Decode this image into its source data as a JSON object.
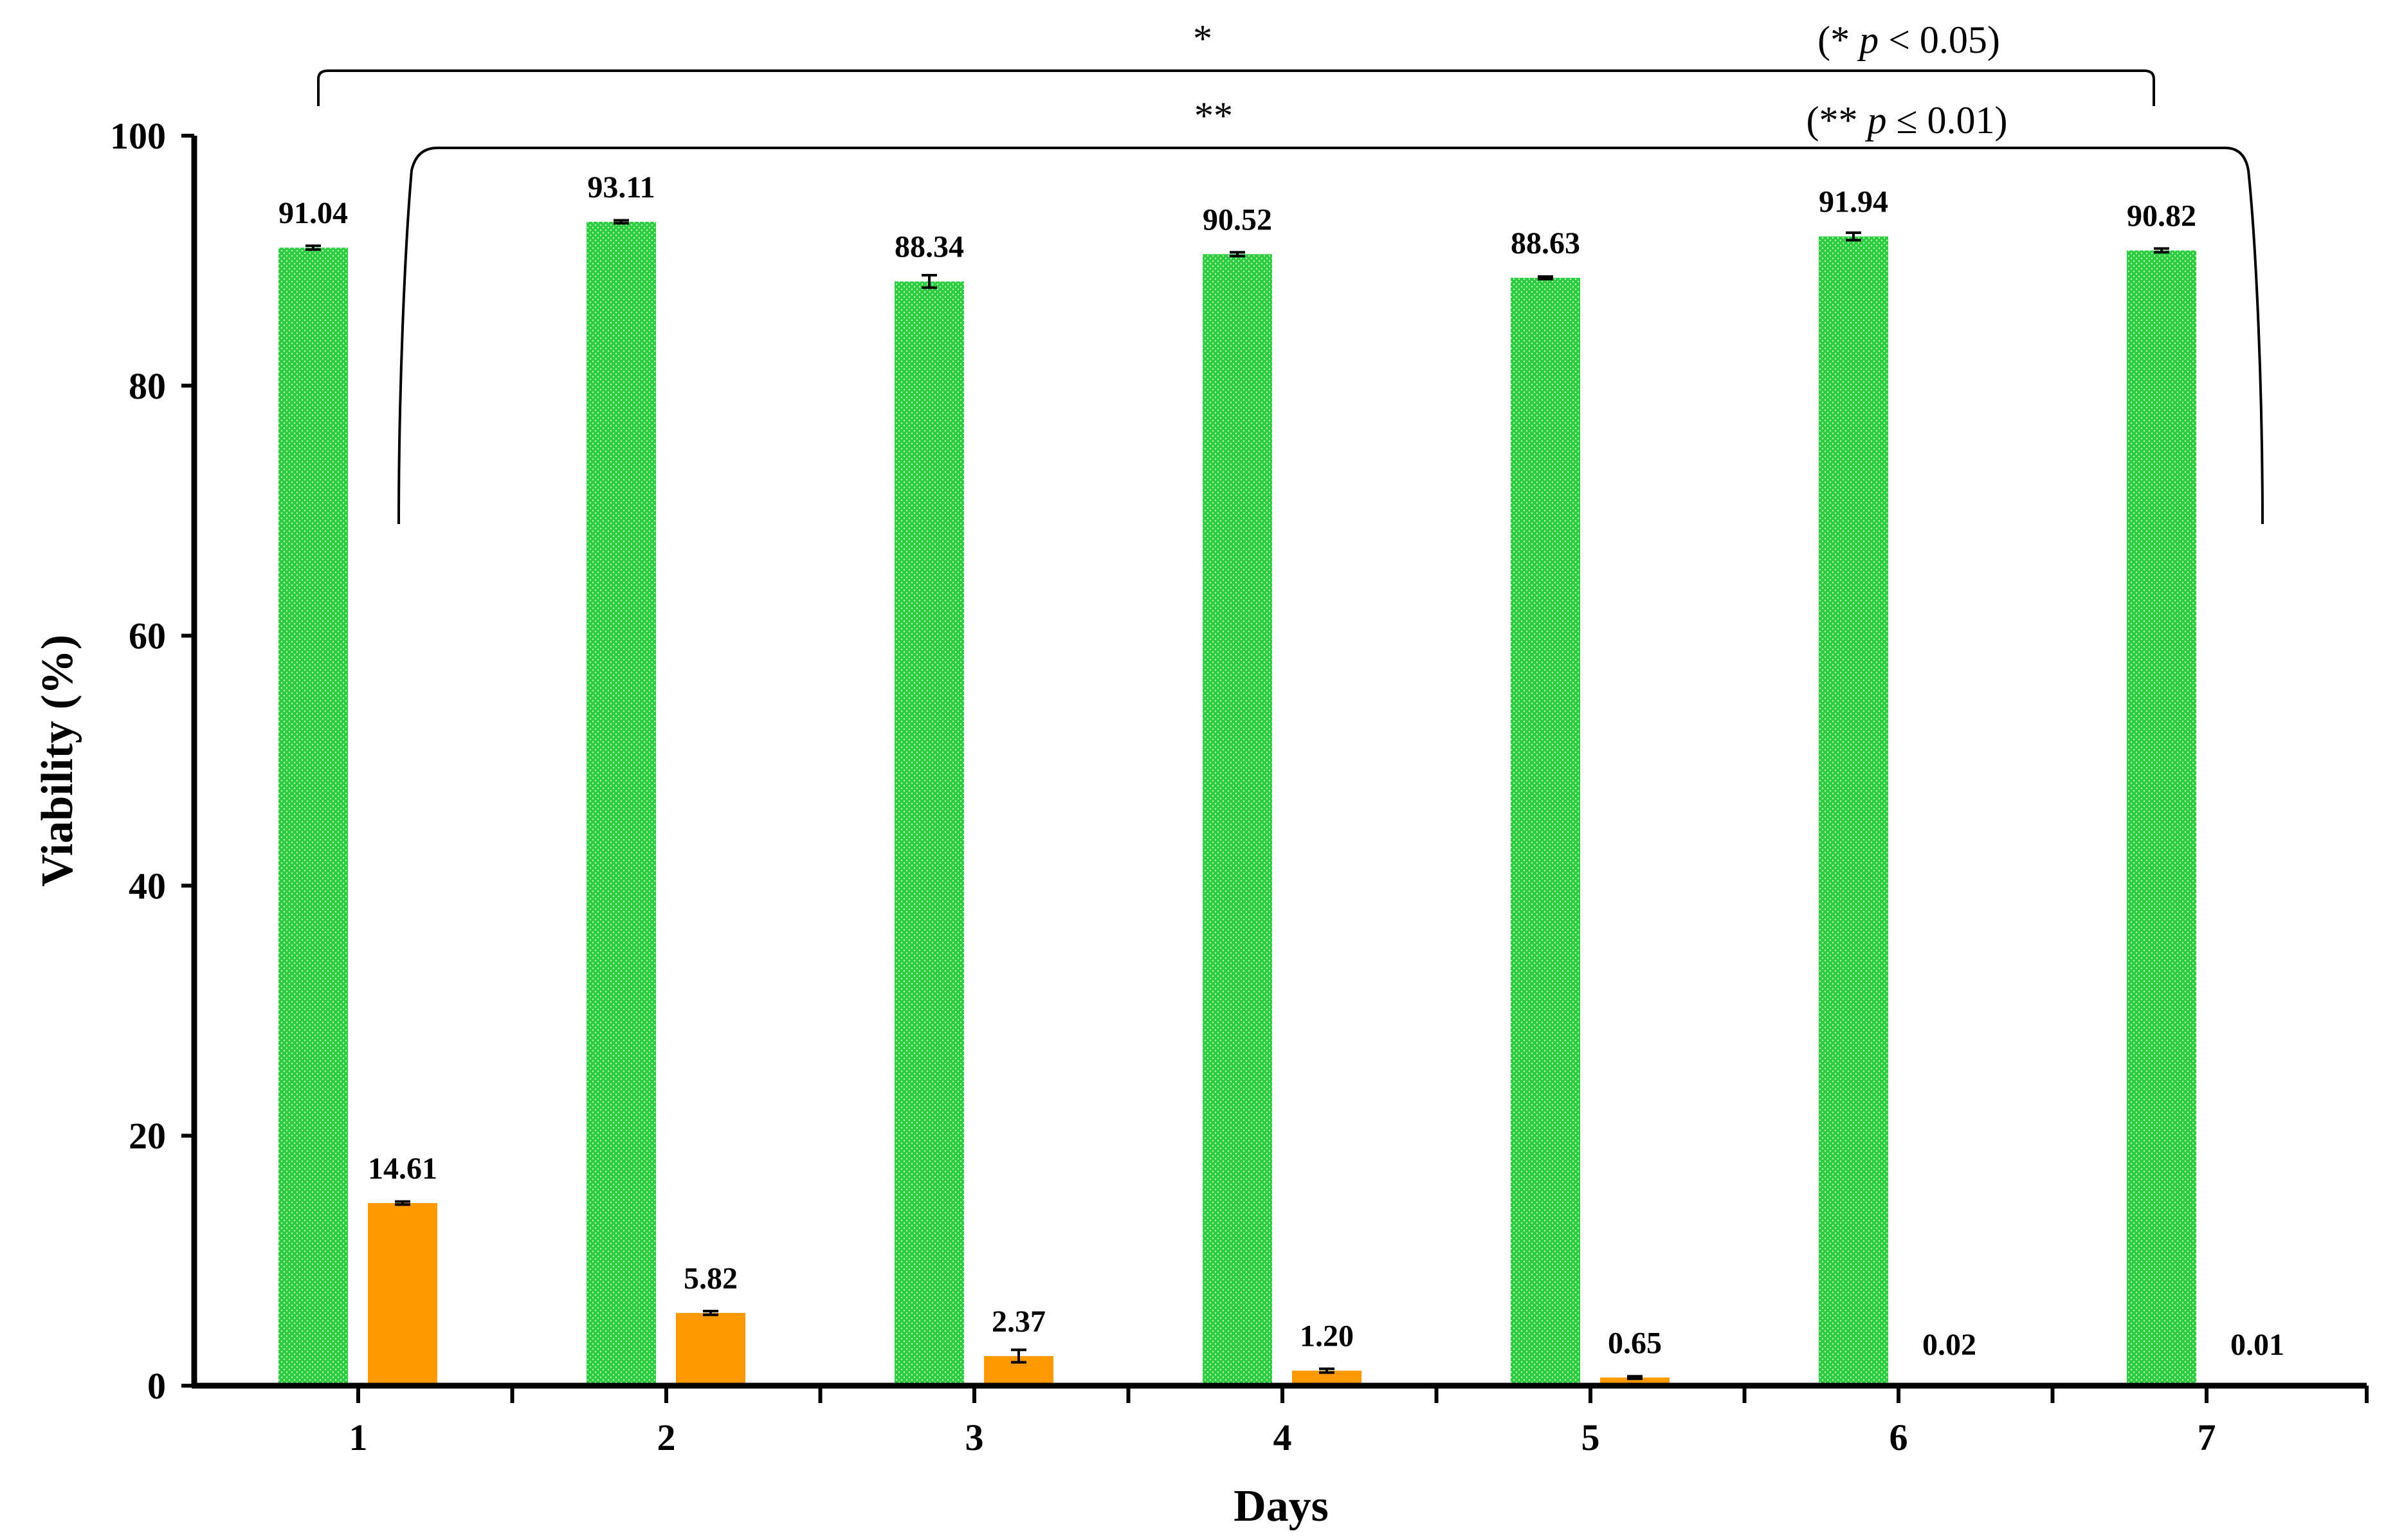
{
  "chart_data": {
    "type": "bar",
    "xlabel": "Days",
    "ylabel": "Viability (%)",
    "ylim": [
      0,
      100
    ],
    "yticks": [
      "0",
      "20",
      "40",
      "60",
      "80",
      "100"
    ],
    "categories": [
      "1",
      "2",
      "3",
      "4",
      "5",
      "6",
      "7"
    ],
    "grid": false,
    "legend": "none",
    "series": [
      {
        "color": "#2ecc40",
        "pattern": "dotted",
        "values": [
          91.04,
          93.11,
          88.34,
          90.52,
          88.63,
          91.94,
          90.82
        ],
        "labels": [
          "91.04",
          "93.11",
          "88.34",
          "90.52",
          "88.63",
          "91.94",
          "90.82"
        ],
        "errors": [
          0.15,
          0.12,
          0.5,
          0.15,
          0.1,
          0.3,
          0.15
        ]
      },
      {
        "color": "#ff9900",
        "values": [
          14.61,
          5.82,
          2.37,
          1.2,
          0.65,
          0.02,
          0.01
        ],
        "labels": [
          "14.61",
          "5.82",
          "2.37",
          "1.20",
          "0.65",
          "0.02",
          "0.01"
        ],
        "errors": [
          0.12,
          0.15,
          0.5,
          0.15,
          0.1,
          0,
          0
        ]
      }
    ],
    "annotations": [
      {
        "star": "*",
        "note_prefix": "(* ",
        "note_p": "p",
        "note_suffix": " < 0.05)",
        "from_category": "1",
        "to_category": "7"
      },
      {
        "star": "**",
        "note_prefix": "(** ",
        "note_p": "p",
        "note_suffix": " ≤ 0.01)",
        "from_category": "1",
        "to_category": "7"
      }
    ]
  }
}
